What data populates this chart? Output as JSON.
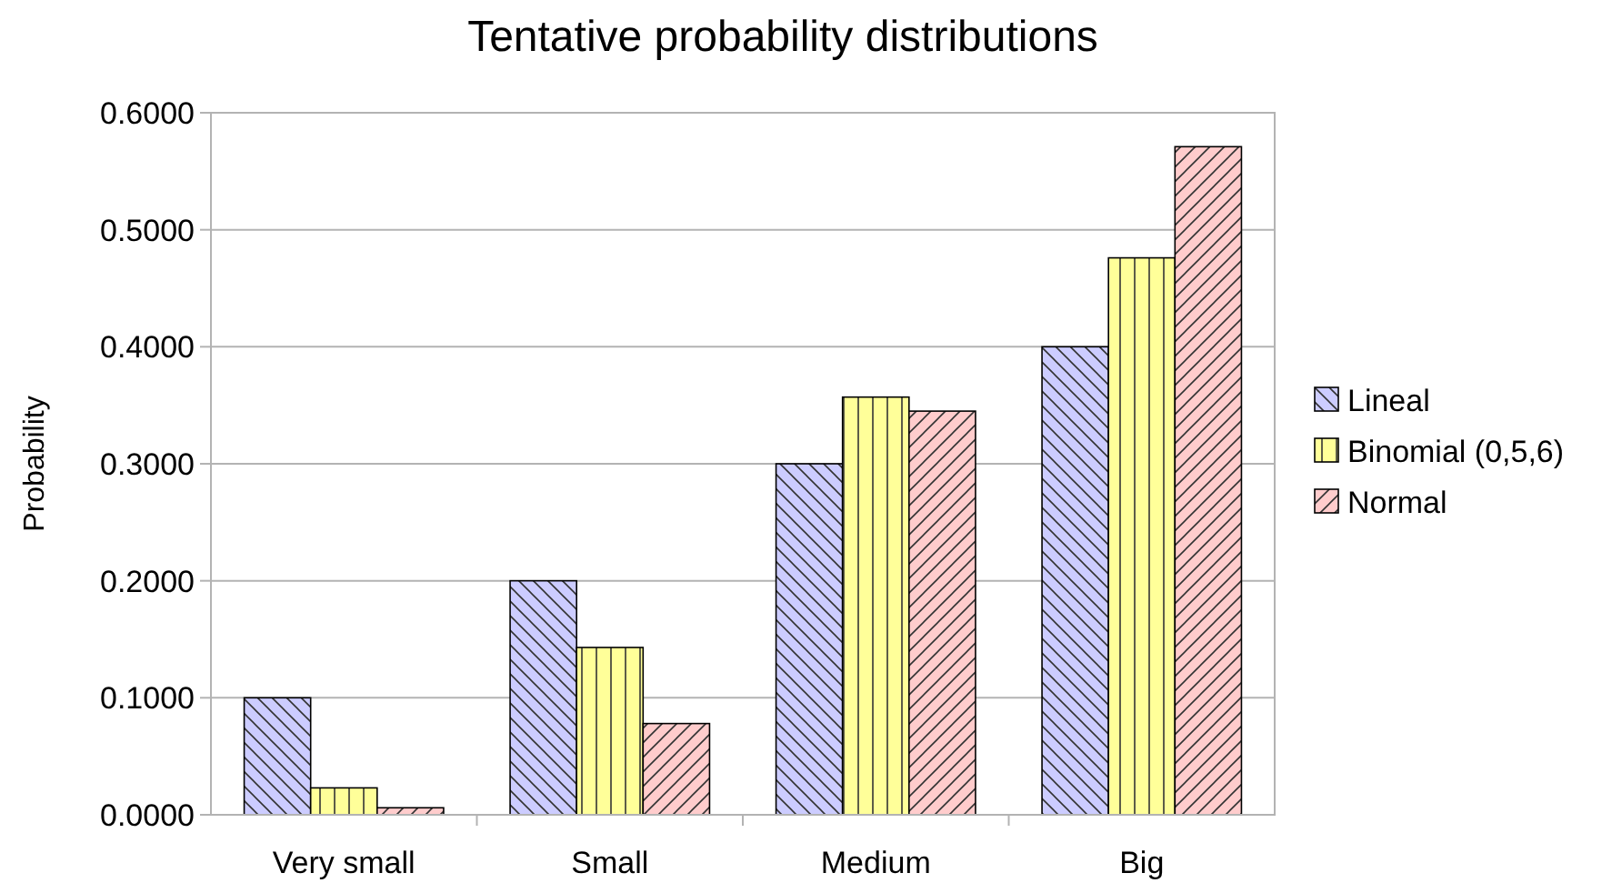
{
  "chart_data": {
    "type": "bar",
    "title": "Tentative probability distributions",
    "ylabel": "Probability",
    "categories": [
      "Very small",
      "Small",
      "Medium",
      "Big"
    ],
    "series": [
      {
        "name": "Lineal",
        "color": "#ccccff",
        "values": [
          0.1,
          0.2,
          0.3,
          0.4
        ]
      },
      {
        "name": "Binomial (0,5,6)",
        "color": "#ffff99",
        "values": [
          0.023,
          0.143,
          0.357,
          0.476
        ]
      },
      {
        "name": "Normal",
        "color": "#ffcccc",
        "values": [
          0.006,
          0.078,
          0.345,
          0.571
        ]
      }
    ],
    "ylim": [
      0,
      0.6
    ],
    "yticks": [
      {
        "value": 0,
        "label": "0.0000"
      },
      {
        "value": 0.1,
        "label": "0.1000"
      },
      {
        "value": 0.2,
        "label": "0.2000"
      },
      {
        "value": 0.3,
        "label": "0.3000"
      },
      {
        "value": 0.4,
        "label": "0.4000"
      },
      {
        "value": 0.5,
        "label": "0.5000"
      },
      {
        "value": 0.6,
        "label": "0.6000"
      }
    ],
    "grid": "y",
    "legend": "right"
  }
}
